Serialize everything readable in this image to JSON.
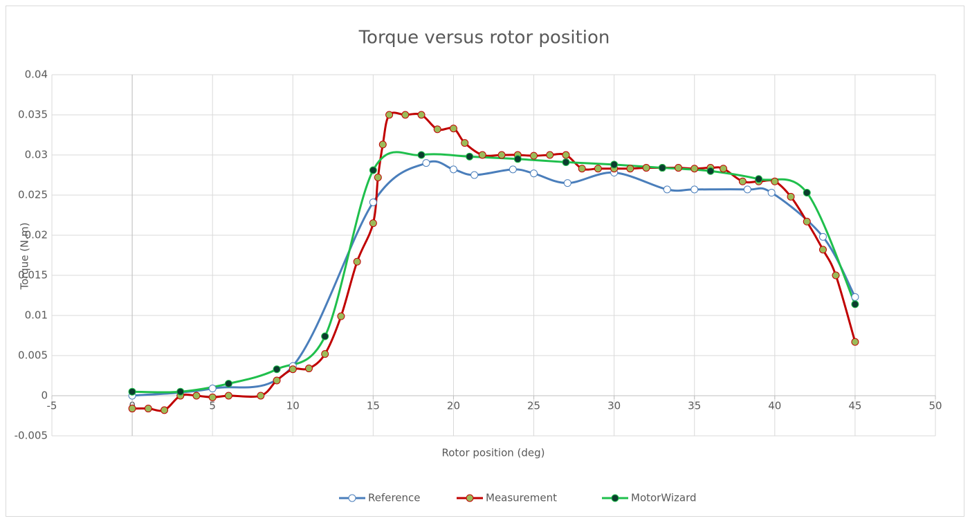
{
  "chart_data": {
    "type": "scatter-smooth",
    "title": "Torque versus rotor position",
    "xlabel": "Rotor position (deg)",
    "ylabel": "Torque (N.m)",
    "xlim": [
      -5,
      50
    ],
    "xticks": [
      -5,
      0,
      5,
      10,
      15,
      20,
      25,
      30,
      35,
      40,
      45,
      50
    ],
    "ylim": [
      -0.005,
      0.04
    ],
    "yticks": [
      -0.005,
      0,
      0.005,
      0.01,
      0.015,
      0.02,
      0.025,
      0.03,
      0.035,
      0.04
    ],
    "grid": true,
    "legend": "bottom",
    "series": [
      {
        "name": "Reference",
        "color": "#4a7ebb",
        "marker_fill": "#ffffff",
        "x": [
          0,
          5,
          10,
          15,
          18.3,
          20,
          21.3,
          23.7,
          25,
          27.1,
          30,
          33.3,
          35,
          38.3,
          39.8,
          43,
          45
        ],
        "values": [
          0,
          0.0009,
          0.0037,
          0.0241,
          0.029,
          0.0282,
          0.0275,
          0.0282,
          0.0277,
          0.0265,
          0.0278,
          0.0257,
          0.0257,
          0.0257,
          0.0253,
          0.0198,
          0.0123
        ]
      },
      {
        "name": "Measurement",
        "color": "#c00000",
        "marker_fill": "#9bbb59",
        "x": [
          0,
          1,
          2,
          3,
          4,
          5,
          6,
          8,
          9,
          10,
          11,
          12,
          13,
          14,
          15,
          15.3,
          15.6,
          16,
          17,
          18,
          19,
          20,
          20.7,
          21.8,
          23,
          24,
          25,
          26,
          27,
          28,
          29,
          30,
          31,
          32,
          33,
          34,
          35,
          36,
          36.8,
          38,
          39,
          40,
          41,
          42,
          43,
          43.8,
          45
        ],
        "values": [
          -0.0016,
          -0.0016,
          -0.0018,
          0,
          0,
          -0.0002,
          0,
          0,
          0.0019,
          0.0033,
          0.0034,
          0.0052,
          0.0099,
          0.0167,
          0.0215,
          0.0272,
          0.0313,
          0.035,
          0.035,
          0.035,
          0.0332,
          0.0333,
          0.0315,
          0.03,
          0.03,
          0.03,
          0.0299,
          0.03,
          0.03,
          0.0283,
          0.0283,
          0.0283,
          0.0283,
          0.0284,
          0.0284,
          0.0284,
          0.0283,
          0.0284,
          0.0283,
          0.0267,
          0.0267,
          0.0267,
          0.0248,
          0.0217,
          0.0182,
          0.015,
          0.0067
        ]
      },
      {
        "name": "MotorWizard",
        "color": "#1fbf4c",
        "marker_fill": "#0b3d2e",
        "x": [
          0,
          3,
          6,
          9,
          12,
          15,
          18,
          21,
          24,
          27,
          30,
          33,
          36,
          39,
          42,
          45
        ],
        "values": [
          0.0005,
          0.0005,
          0.0015,
          0.0033,
          0.0074,
          0.0281,
          0.03,
          0.0298,
          0.0295,
          0.0291,
          0.0288,
          0.0284,
          0.028,
          0.027,
          0.0253,
          0.0114
        ]
      }
    ]
  }
}
